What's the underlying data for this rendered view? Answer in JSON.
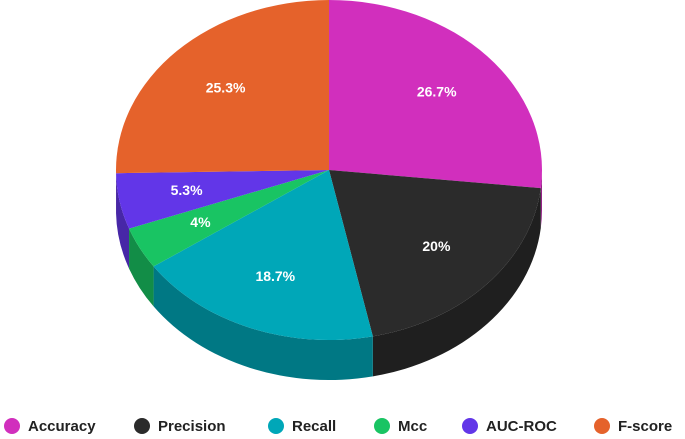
{
  "chart_data": {
    "type": "pie",
    "style": "3d",
    "title": "",
    "legend_position": "bottom",
    "categories": [
      "Accuracy",
      "Precision",
      "Recall",
      "Mcc",
      "AUC-ROC",
      "F-score"
    ],
    "values": [
      26.7,
      20,
      18.7,
      4,
      5.3,
      25.3
    ],
    "value_labels": [
      "26.7%",
      "20%",
      "18.7%",
      "4%",
      "5.3%",
      "25.3%"
    ],
    "colors": [
      "#d12fbd",
      "#2b2b2b",
      "#00a7b8",
      "#19c463",
      "#6236e8",
      "#e5622b"
    ]
  }
}
